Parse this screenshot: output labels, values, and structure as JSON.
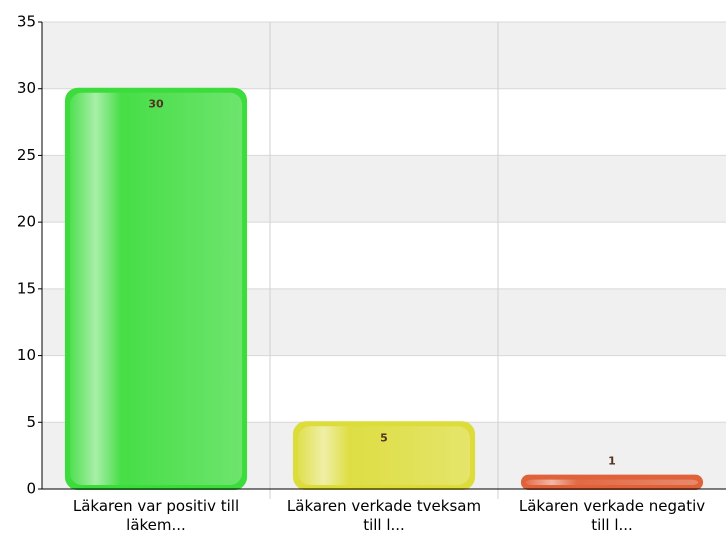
{
  "chart_data": {
    "type": "bar",
    "categories": [
      "Läkaren var positiv till läkem...",
      "Läkaren verkade tveksam till l...",
      "Läkaren verkade negativ till l..."
    ],
    "values": [
      30,
      5,
      1
    ],
    "colors": [
      "#3ddc3d",
      "#dcdc3a",
      "#e0623a"
    ],
    "ylim": [
      0,
      35
    ],
    "yticks": [
      0,
      5,
      10,
      15,
      20,
      25,
      30,
      35
    ],
    "grid": true
  }
}
